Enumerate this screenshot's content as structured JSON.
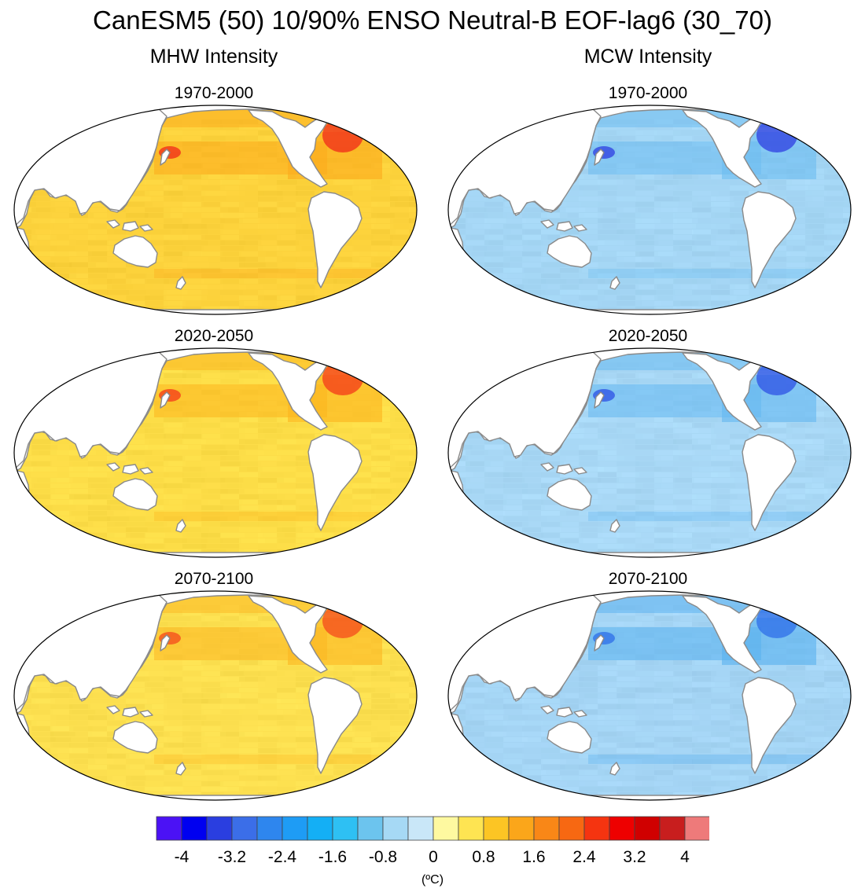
{
  "title": "CanESM5 (50) 10/90% ENSO Neutral-B EOF-lag6 (30_70)",
  "columns": [
    {
      "name": "MHW Intensity",
      "variable": "mhw"
    },
    {
      "name": "MCW Intensity",
      "variable": "mcw"
    }
  ],
  "periods": [
    "1970-2000",
    "2020-2050",
    "2070-2100"
  ],
  "colorbar": {
    "colors": [
      "#4b12f5",
      "#0000f0",
      "#2a3ee0",
      "#3b6ee8",
      "#2e86ee",
      "#1e9cf5",
      "#14aff5",
      "#2ec0f3",
      "#6cc4ee",
      "#a6d9f5",
      "#c9e7f8",
      "#fef9a0",
      "#fee452",
      "#fcc524",
      "#fba61a",
      "#f98717",
      "#f76812",
      "#f53410",
      "#ee0000",
      "#d00000",
      "#c81e1e",
      "#ee7a7a"
    ],
    "tick_labels": [
      "-4",
      "-3.2",
      "-2.4",
      "-1.6",
      "-0.8",
      "0",
      "0.8",
      "1.6",
      "2.4",
      "3.2",
      "4"
    ],
    "unit": "(ºC)",
    "min": -4.4,
    "max": 4.4,
    "step": 0.4
  },
  "panels": [
    {
      "column": "MHW Intensity",
      "period": "1970-2000",
      "base_color": "#fcd23c",
      "hot_color": "#fbaa1c",
      "accent_color": "#f0281a",
      "peak_value_degC": 3.2
    },
    {
      "column": "MHW Intensity",
      "period": "2020-2050",
      "base_color": "#fddd48",
      "hot_color": "#fbb41e",
      "accent_color": "#f4381a",
      "peak_value_degC": 2.4
    },
    {
      "column": "MHW Intensity",
      "period": "2070-2100",
      "base_color": "#fde050",
      "hot_color": "#fbb622",
      "accent_color": "#f4481c",
      "peak_value_degC": 2.4
    },
    {
      "column": "MCW Intensity",
      "period": "1970-2000",
      "base_color": "#a4d6f4",
      "hot_color": "#6cbcf0",
      "accent_color": "#2d3ee2",
      "peak_value_degC": -3.6
    },
    {
      "column": "MCW Intensity",
      "period": "2020-2050",
      "base_color": "#a8d8f5",
      "hot_color": "#64b8f0",
      "accent_color": "#2c50e4",
      "peak_value_degC": -3.2
    },
    {
      "column": "MCW Intensity",
      "period": "2070-2100",
      "base_color": "#a4d4f4",
      "hot_color": "#58b0ef",
      "accent_color": "#2d6ee8",
      "peak_value_degC": -2.8
    }
  ]
}
